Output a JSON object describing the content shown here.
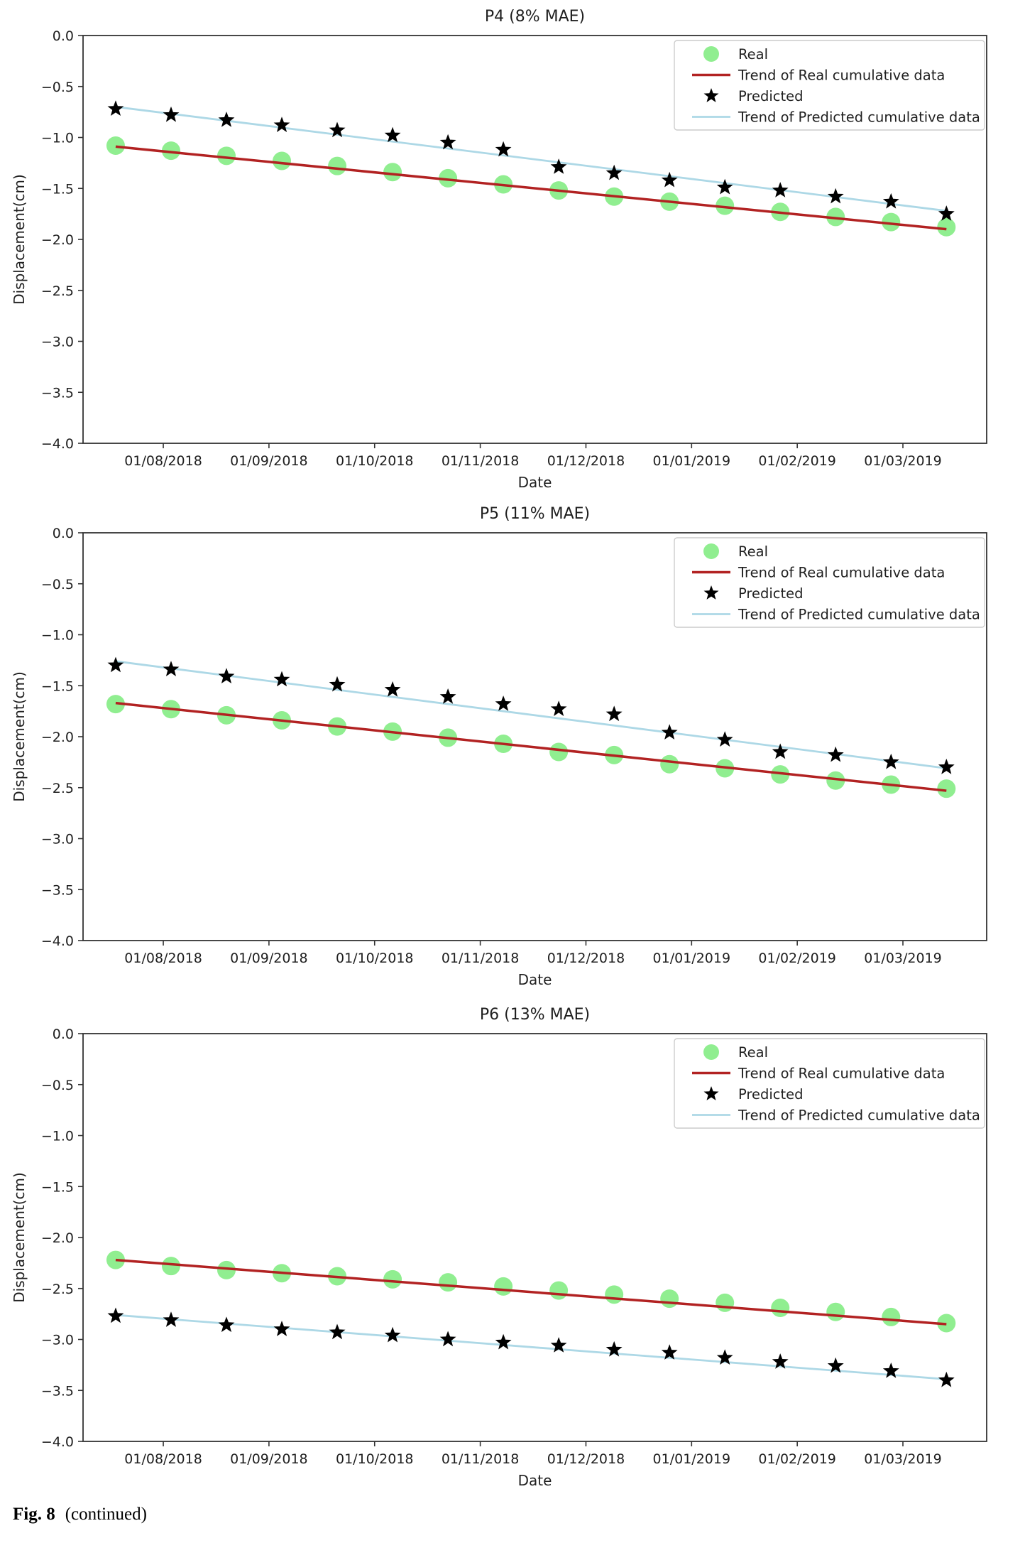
{
  "caption": {
    "label": "Fig. 8",
    "text": "(continued)"
  },
  "colors": {
    "real_marker": "#90EE90",
    "real_trend": "#B22222",
    "predicted_marker": "#000000",
    "predicted_trend": "#ADD8E6",
    "spine": "#333333",
    "legend_border": "#cccccc"
  },
  "chart_data": [
    {
      "type": "scatter",
      "title": "P4 (8% MAE)",
      "xlabel": "Date",
      "ylabel": "Displacement(cm)",
      "ylim": [
        -4.0,
        0.0
      ],
      "grid": false,
      "legend_position": "upper right",
      "yticks": [
        "0.0",
        "−0.5",
        "−1.0",
        "−1.5",
        "−2.0",
        "−2.5",
        "−3.0",
        "−3.5",
        "−4.0"
      ],
      "xticklabels": [
        "01/08/2018",
        "01/09/2018",
        "01/10/2018",
        "01/11/2018",
        "01/12/2018",
        "01/01/2019",
        "01/02/2019",
        "01/03/2019"
      ],
      "n_points": 16,
      "legend": [
        "Real",
        "Trend of Real cumulative data",
        "Predicted",
        "Trend of Predicted cumulative data"
      ],
      "series": [
        {
          "name": "Real",
          "kind": "marker",
          "marker": "circle",
          "values": [
            -1.08,
            -1.13,
            -1.18,
            -1.23,
            -1.28,
            -1.34,
            -1.4,
            -1.46,
            -1.52,
            -1.58,
            -1.63,
            -1.67,
            -1.73,
            -1.78,
            -1.83,
            -1.88
          ]
        },
        {
          "name": "Trend of Real cumulative data",
          "kind": "trend",
          "trend": [
            -1.09,
            -1.9
          ]
        },
        {
          "name": "Predicted",
          "kind": "marker",
          "marker": "star",
          "values": [
            -0.72,
            -0.78,
            -0.83,
            -0.88,
            -0.93,
            -0.98,
            -1.05,
            -1.12,
            -1.29,
            -1.35,
            -1.42,
            -1.49,
            -1.52,
            -1.58,
            -1.63,
            -1.75
          ]
        },
        {
          "name": "Trend of Predicted cumulative data",
          "kind": "trend",
          "trend": [
            -0.7,
            -1.72
          ]
        }
      ]
    },
    {
      "type": "scatter",
      "title": "P5 (11% MAE)",
      "xlabel": "Date",
      "ylabel": "Displacement(cm)",
      "ylim": [
        -4.0,
        0.0
      ],
      "grid": false,
      "legend_position": "upper right",
      "yticks": [
        "0.0",
        "−0.5",
        "−1.0",
        "−1.5",
        "−2.0",
        "−2.5",
        "−3.0",
        "−3.5",
        "−4.0"
      ],
      "xticklabels": [
        "01/08/2018",
        "01/09/2018",
        "01/10/2018",
        "01/11/2018",
        "01/12/2018",
        "01/01/2019",
        "01/02/2019",
        "01/03/2019"
      ],
      "n_points": 16,
      "legend": [
        "Real",
        "Trend of Real cumulative data",
        "Predicted",
        "Trend of Predicted cumulative data"
      ],
      "series": [
        {
          "name": "Real",
          "kind": "marker",
          "marker": "circle",
          "values": [
            -1.68,
            -1.73,
            -1.79,
            -1.84,
            -1.9,
            -1.95,
            -2.01,
            -2.07,
            -2.15,
            -2.18,
            -2.27,
            -2.31,
            -2.37,
            -2.43,
            -2.47,
            -2.51
          ]
        },
        {
          "name": "Trend of Real cumulative data",
          "kind": "trend",
          "trend": [
            -1.67,
            -2.53
          ]
        },
        {
          "name": "Predicted",
          "kind": "marker",
          "marker": "star",
          "values": [
            -1.3,
            -1.34,
            -1.41,
            -1.44,
            -1.49,
            -1.54,
            -1.61,
            -1.68,
            -1.73,
            -1.78,
            -1.96,
            -2.03,
            -2.15,
            -2.18,
            -2.25,
            -2.3
          ]
        },
        {
          "name": "Trend of Predicted cumulative data",
          "kind": "trend",
          "trend": [
            -1.26,
            -2.31
          ]
        }
      ]
    },
    {
      "type": "scatter",
      "title": "P6 (13% MAE)",
      "xlabel": "Date",
      "ylabel": "Displacement(cm)",
      "ylim": [
        -4.0,
        0.0
      ],
      "grid": false,
      "legend_position": "upper right",
      "yticks": [
        "0.0",
        "−0.5",
        "−1.0",
        "−1.5",
        "−2.0",
        "−2.5",
        "−3.0",
        "−3.5",
        "−4.0"
      ],
      "xticklabels": [
        "01/08/2018",
        "01/09/2018",
        "01/10/2018",
        "01/11/2018",
        "01/12/2018",
        "01/01/2019",
        "01/02/2019",
        "01/03/2019"
      ],
      "n_points": 16,
      "legend": [
        "Real",
        "Trend of Real cumulative data",
        "Predicted",
        "Trend of Predicted cumulative data"
      ],
      "series": [
        {
          "name": "Real",
          "kind": "marker",
          "marker": "circle",
          "values": [
            -2.22,
            -2.28,
            -2.32,
            -2.35,
            -2.38,
            -2.41,
            -2.44,
            -2.48,
            -2.52,
            -2.56,
            -2.6,
            -2.64,
            -2.69,
            -2.73,
            -2.78,
            -2.84
          ]
        },
        {
          "name": "Trend of Real cumulative data",
          "kind": "trend",
          "trend": [
            -2.22,
            -2.85
          ]
        },
        {
          "name": "Predicted",
          "kind": "marker",
          "marker": "star",
          "values": [
            -2.77,
            -2.81,
            -2.86,
            -2.9,
            -2.93,
            -2.96,
            -3.0,
            -3.03,
            -3.06,
            -3.1,
            -3.13,
            -3.18,
            -3.22,
            -3.26,
            -3.31,
            -3.4
          ]
        },
        {
          "name": "Trend of Predicted cumulative data",
          "kind": "trend",
          "trend": [
            -2.76,
            -3.39
          ]
        }
      ]
    }
  ]
}
